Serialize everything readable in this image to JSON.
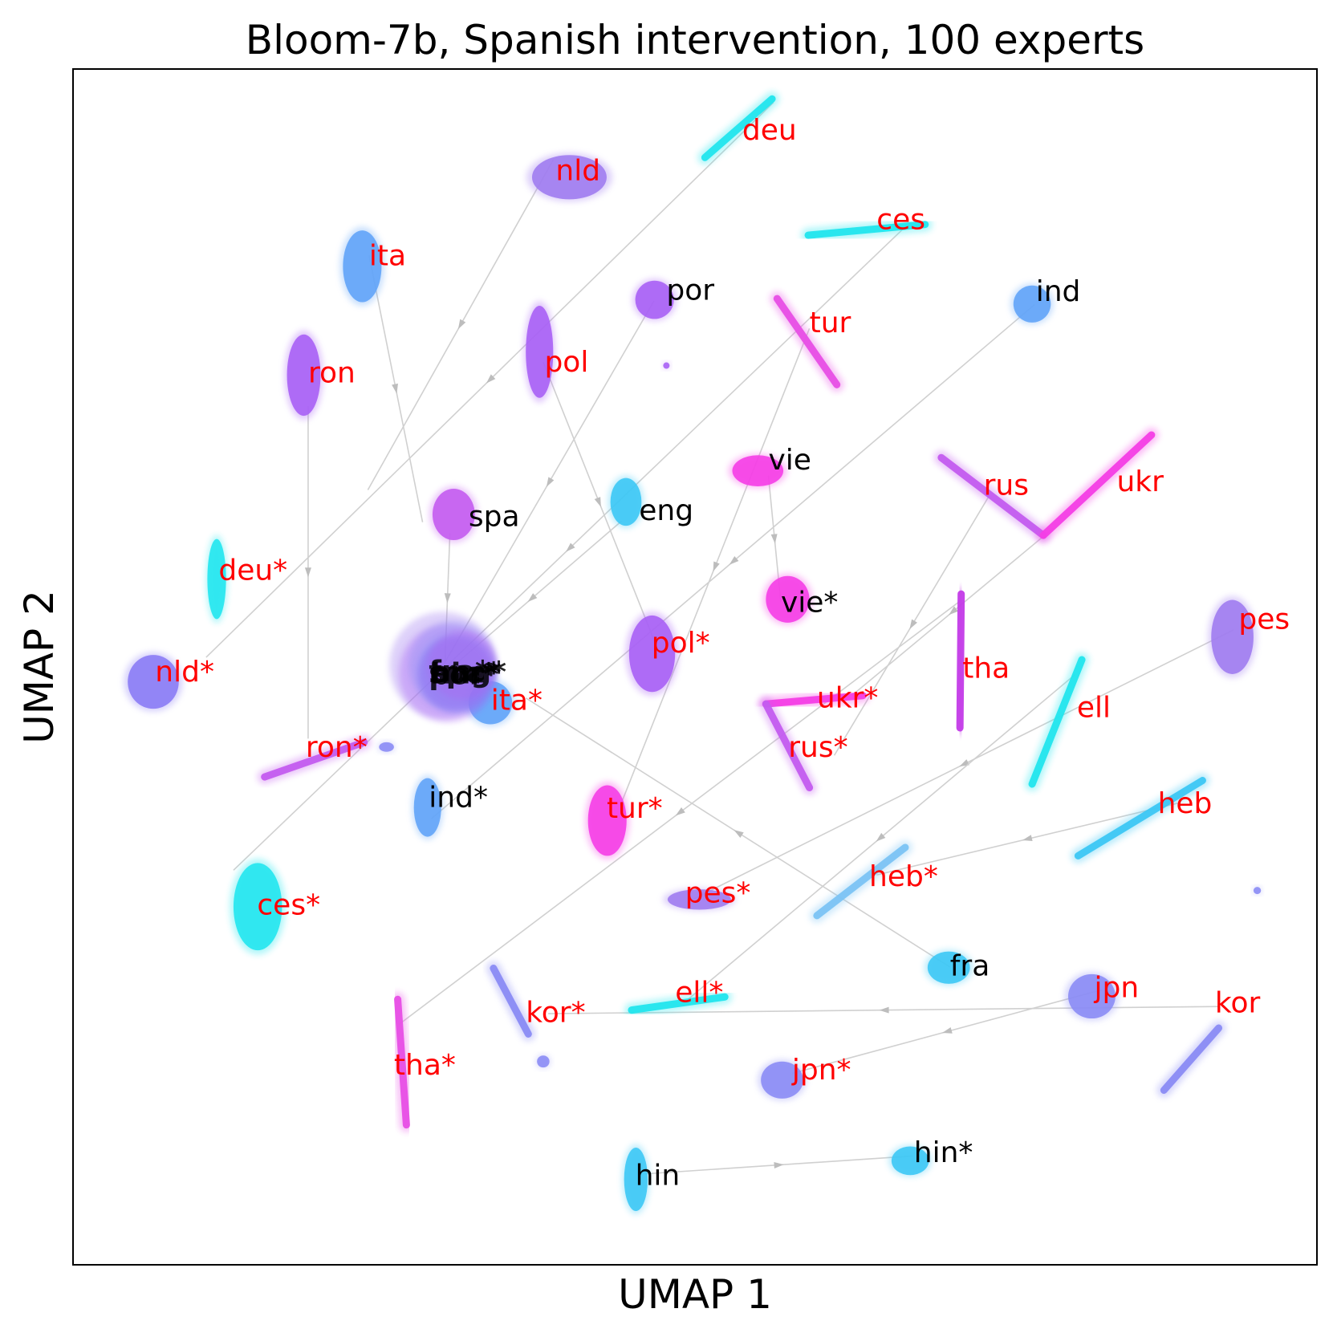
{
  "chart_data": {
    "type": "scatter",
    "title": "Bloom-7b, Spanish intervention, 100 experts",
    "xlabel": "UMAP 1",
    "ylabel": "UMAP 2",
    "xlim": [
      0,
      100
    ],
    "ylim": [
      0,
      100
    ],
    "grid": false,
    "legend": "none",
    "colors": {
      "highlight_label": "#ff0000",
      "default_label": "#000000",
      "arrow": "#d0d0d0"
    },
    "clusters": [
      {
        "label": "deu",
        "color": "#22e6ee",
        "shape": "line",
        "x": [
          50.8,
          56.2
        ],
        "y": [
          92.6,
          97.5
        ],
        "lx": 53.8,
        "ly": 94.9,
        "highlight": true
      },
      {
        "label": "nld",
        "color": "#a07cf0",
        "shape": "blob",
        "x": [
          36.9,
          42.9
        ],
        "y": [
          89.1,
          92.8
        ],
        "lx": 38.8,
        "ly": 91.5,
        "highlight": true
      },
      {
        "label": "ces",
        "color": "#22e6ee",
        "shape": "line",
        "x": [
          59.1,
          68.5
        ],
        "y": [
          86.1,
          87.0
        ],
        "lx": 64.6,
        "ly": 87.4,
        "highlight": true
      },
      {
        "label": "ita",
        "color": "#62a4f8",
        "shape": "blob",
        "x": [
          21.7,
          24.8
        ],
        "y": [
          80.5,
          86.5
        ],
        "lx": 23.8,
        "ly": 84.4,
        "highlight": true
      },
      {
        "label": "por",
        "color": "#a860f5",
        "shape": "blob",
        "x": [
          45.2,
          48.3
        ],
        "y": [
          79.1,
          82.3
        ],
        "lx": 47.7,
        "ly": 81.5,
        "highlight": false
      },
      {
        "label": "ind",
        "color": "#62a4f8",
        "shape": "blob",
        "x": [
          75.6,
          78.6
        ],
        "y": [
          78.8,
          81.9
        ],
        "lx": 77.4,
        "ly": 81.4,
        "highlight": false
      },
      {
        "label": "tur",
        "color": "#e84fe6",
        "shape": "line",
        "x": [
          56.6,
          61.4
        ],
        "y": [
          73.6,
          80.8
        ],
        "lx": 59.2,
        "ly": 78.8,
        "highlight": true
      },
      {
        "label": "pol",
        "color": "#a860f5",
        "shape": "blob",
        "x": [
          36.4,
          38.6
        ],
        "y": [
          72.5,
          80.2
        ],
        "lx": 37.9,
        "ly": 75.5,
        "highlight": true
      },
      {
        "label": "ron",
        "color": "#a860f5",
        "shape": "blob",
        "x": [
          17.2,
          19.9
        ],
        "y": [
          71.0,
          77.8
        ],
        "lx": 18.9,
        "ly": 74.6,
        "highlight": true
      },
      {
        "label": "vie",
        "color": "#f53ee6",
        "shape": "blob",
        "x": [
          53.0,
          57.1
        ],
        "y": [
          65.1,
          67.7
        ],
        "lx": 55.9,
        "ly": 67.3,
        "highlight": false
      },
      {
        "label": "rus",
        "color": "#c45cf0",
        "shape": "line",
        "x": [
          69.8,
          78.0
        ],
        "y": [
          61.0,
          67.5
        ],
        "lx": 73.2,
        "ly": 65.2,
        "highlight": true
      },
      {
        "label": "ukr",
        "color": "#f53ee6",
        "shape": "line",
        "x": [
          78.0,
          86.7
        ],
        "y": [
          61.0,
          69.4
        ],
        "lx": 83.9,
        "ly": 65.5,
        "highlight": true
      },
      {
        "label": "eng",
        "color": "#3dc8f5",
        "shape": "blob",
        "x": [
          43.2,
          45.7
        ],
        "y": [
          61.8,
          65.8
        ],
        "lx": 45.5,
        "ly": 63.1,
        "highlight": false
      },
      {
        "label": "spa",
        "color": "#c45cf0",
        "shape": "blob",
        "x": [
          28.9,
          32.3
        ],
        "y": [
          60.6,
          64.9
        ],
        "lx": 31.8,
        "ly": 62.6,
        "highlight": false
      },
      {
        "label": "deu*",
        "color": "#22e6ee",
        "shape": "blob",
        "x": [
          10.8,
          12.3
        ],
        "y": [
          54.0,
          60.7
        ],
        "lx": 11.7,
        "ly": 58.1,
        "highlight": true
      },
      {
        "label": "vie*",
        "color": "#f53ee6",
        "shape": "blob",
        "x": [
          55.7,
          59.2
        ],
        "y": [
          53.7,
          57.6
        ],
        "lx": 56.9,
        "ly": 55.4,
        "highlight": false
      },
      {
        "label": "pes",
        "color": "#a07cf0",
        "shape": "blob",
        "x": [
          91.5,
          94.9
        ],
        "y": [
          49.4,
          55.6
        ],
        "lx": 93.7,
        "ly": 54.0,
        "highlight": true
      },
      {
        "label": "pol*",
        "color": "#a860f5",
        "shape": "blob",
        "x": [
          44.7,
          48.4
        ],
        "y": [
          47.9,
          54.3
        ],
        "lx": 46.5,
        "ly": 52.0,
        "highlight": true
      },
      {
        "label": "tha",
        "color": "#c43ce8",
        "shape": "line",
        "x": [
          71.3,
          71.4
        ],
        "y": [
          44.9,
          56.1
        ],
        "lx": 71.5,
        "ly": 49.9,
        "highlight": true
      },
      {
        "label": "ell",
        "color": "#22e6ee",
        "shape": "line",
        "x": [
          77.1,
          81.1
        ],
        "y": [
          40.2,
          50.6
        ],
        "lx": 80.7,
        "ly": 46.6,
        "highlight": true
      },
      {
        "label": "nld*",
        "color": "#8b7cf5",
        "shape": "blob",
        "x": [
          4.4,
          8.5
        ],
        "y": [
          46.5,
          51.0
        ],
        "lx": 6.6,
        "ly": 49.6,
        "highlight": true
      },
      {
        "label": "ita*",
        "color": "#62a4f8",
        "shape": "blob",
        "x": [
          31.8,
          35.3
        ],
        "y": [
          45.2,
          48.8
        ],
        "lx": 33.6,
        "ly": 47.2,
        "highlight": true
      },
      {
        "label": "ukr*",
        "color": "#f53ee6",
        "shape": "line",
        "x": [
          55.7,
          63.5
        ],
        "y": [
          46.9,
          47.6
        ],
        "lx": 59.8,
        "ly": 47.4,
        "highlight": true
      },
      {
        "label": "rus*",
        "color": "#c45cf0",
        "shape": "line",
        "x": [
          55.7,
          59.2
        ],
        "y": [
          39.9,
          46.9
        ],
        "lx": 57.5,
        "ly": 43.3,
        "highlight": true
      },
      {
        "label": "ron*",
        "color": "#c45cf0",
        "shape": "line",
        "x": [
          15.4,
          23.4
        ],
        "y": [
          40.8,
          43.7
        ],
        "lx": 18.7,
        "ly": 43.3,
        "highlight": true
      },
      {
        "label": "ind*",
        "color": "#62a4f8",
        "shape": "blob",
        "x": [
          27.4,
          29.6
        ],
        "y": [
          35.8,
          40.7
        ],
        "lx": 28.6,
        "ly": 39.1,
        "highlight": false
      },
      {
        "label": "tur*",
        "color": "#f53ee6",
        "shape": "blob",
        "x": [
          41.4,
          44.5
        ],
        "y": [
          34.2,
          40.1
        ],
        "lx": 42.9,
        "ly": 38.2,
        "highlight": true
      },
      {
        "label": "heb",
        "color": "#3dc8f5",
        "shape": "line",
        "x": [
          80.8,
          90.8
        ],
        "y": [
          34.2,
          40.5
        ],
        "lx": 87.2,
        "ly": 38.6,
        "highlight": true
      },
      {
        "label": "heb*",
        "color": "#7cc4f5",
        "shape": "line",
        "x": [
          59.8,
          66.9
        ],
        "y": [
          29.2,
          34.9
        ],
        "lx": 64.0,
        "ly": 32.5,
        "highlight": true
      },
      {
        "label": "pes*",
        "color": "#a07cf0",
        "shape": "blob",
        "x": [
          47.8,
          52.9
        ],
        "y": [
          29.7,
          31.4
        ],
        "lx": 49.2,
        "ly": 31.1,
        "highlight": true
      },
      {
        "label": "ces*",
        "color": "#22e6ee",
        "shape": "blob",
        "x": [
          12.9,
          16.8
        ],
        "y": [
          26.3,
          33.6
        ],
        "lx": 14.8,
        "ly": 30.1,
        "highlight": true
      },
      {
        "label": "fra",
        "color": "#3dc8f5",
        "shape": "blob",
        "x": [
          68.7,
          72.1
        ],
        "y": [
          23.5,
          26.2
        ],
        "lx": 70.5,
        "ly": 25.0,
        "highlight": false
      },
      {
        "label": "jpn",
        "color": "#8b8cf5",
        "shape": "blob",
        "x": [
          80.0,
          83.8
        ],
        "y": [
          20.6,
          24.3
        ],
        "lx": 82.1,
        "ly": 23.2,
        "highlight": true
      },
      {
        "label": "kor",
        "color": "#8b8cf5",
        "shape": "line",
        "x": [
          87.7,
          92.1
        ],
        "y": [
          14.6,
          19.8
        ],
        "lx": 91.8,
        "ly": 21.9,
        "highlight": true
      },
      {
        "label": "ell*",
        "color": "#22e6ee",
        "shape": "line",
        "x": [
          44.9,
          52.4
        ],
        "y": [
          21.3,
          22.4
        ],
        "lx": 48.4,
        "ly": 22.8,
        "highlight": true
      },
      {
        "label": "kor*",
        "color": "#8b8cf5",
        "shape": "line",
        "x": [
          33.8,
          36.6
        ],
        "y": [
          19.3,
          24.8
        ],
        "lx": 36.4,
        "ly": 21.1,
        "highlight": true
      },
      {
        "label": "tha*",
        "color": "#e84fe6",
        "shape": "line",
        "x": [
          26.1,
          26.8
        ],
        "y": [
          11.7,
          22.2
        ],
        "lx": 25.8,
        "ly": 16.7,
        "highlight": true
      },
      {
        "label": "jpn*",
        "color": "#8b8cf5",
        "shape": "blob",
        "x": [
          55.3,
          58.7
        ],
        "y": [
          13.9,
          17.0
        ],
        "lx": 57.8,
        "ly": 16.3,
        "highlight": true
      },
      {
        "label": "hin*",
        "color": "#3dc8f5",
        "shape": "blob",
        "x": [
          65.8,
          68.8
        ],
        "y": [
          7.5,
          9.9
        ],
        "lx": 67.6,
        "ly": 9.4,
        "highlight": false
      },
      {
        "label": "hin",
        "color": "#3dc8f5",
        "shape": "blob",
        "x": [
          44.3,
          46.2
        ],
        "y": [
          4.5,
          9.8
        ],
        "lx": 45.2,
        "ly": 7.5,
        "highlight": false
      },
      {
        "label": "",
        "color": "#8b8cf5",
        "shape": "blob",
        "x": [
          94.9,
          95.5
        ],
        "y": [
          31.0,
          31.6
        ],
        "lx": 0,
        "ly": 0,
        "highlight": false
      },
      {
        "label": "",
        "color": "#8b8cf5",
        "shape": "blob",
        "x": [
          37.3,
          38.3
        ],
        "y": [
          16.5,
          17.5
        ],
        "lx": 0,
        "ly": 0,
        "highlight": false
      },
      {
        "label": "",
        "color": "#a860f5",
        "shape": "blob",
        "x": [
          47.5,
          47.9
        ],
        "y": [
          75.0,
          75.4
        ],
        "lx": 0,
        "ly": 0,
        "highlight": false
      },
      {
        "label": "",
        "color": "#8b8cf5",
        "shape": "blob",
        "x": [
          24.6,
          25.8
        ],
        "y": [
          42.9,
          43.7
        ],
        "lx": 0,
        "ly": 0,
        "highlight": false
      }
    ],
    "center_cluster": {
      "x": 30.5,
      "y": 49.8,
      "r": 4.3,
      "colors": [
        "#a07cf0",
        "#a860f5",
        "#8b8cf5",
        "#62a4f8",
        "#c45cf0"
      ],
      "labels": [
        "fra*",
        "eng*",
        "spa*",
        "hin*",
        "por*"
      ],
      "lx": 28.6,
      "ly": 49.5
    },
    "arrows": [
      {
        "from": [
          38.6,
          92.4
        ],
        "to": [
          23.7,
          64.8
        ]
      },
      {
        "from": [
          56.3,
          97.2
        ],
        "to": [
          10.7,
          50.8
        ]
      },
      {
        "from": [
          66.9,
          86.8
        ],
        "to": [
          12.9,
          33.0
        ]
      },
      {
        "from": [
          23.8,
          84.4
        ],
        "to": [
          28.1,
          62.1
        ]
      },
      {
        "from": [
          18.9,
          71.8
        ],
        "to": [
          18.9,
          44.0
        ]
      },
      {
        "from": [
          46.7,
          80.6
        ],
        "to": [
          29.8,
          50.2
        ]
      },
      {
        "from": [
          59.2,
          78.3
        ],
        "to": [
          44.0,
          38.4
        ]
      },
      {
        "from": [
          37.8,
          75.5
        ],
        "to": [
          46.8,
          52.0
        ]
      },
      {
        "from": [
          77.3,
          80.3
        ],
        "to": [
          28.8,
          37.3
        ]
      },
      {
        "from": [
          55.9,
          66.0
        ],
        "to": [
          56.9,
          55.4
        ]
      },
      {
        "from": [
          44.1,
          62.2
        ],
        "to": [
          29.6,
          49.2
        ]
      },
      {
        "from": [
          30.3,
          61.2
        ],
        "to": [
          29.9,
          50.3
        ]
      },
      {
        "from": [
          73.7,
          64.4
        ],
        "to": [
          61.2,
          42.6
        ]
      },
      {
        "from": [
          78.8,
          61.6
        ],
        "to": [
          62.6,
          47.6
        ]
      },
      {
        "from": [
          71.3,
          55.5
        ],
        "to": [
          26.2,
          20.1
        ]
      },
      {
        "from": [
          93.3,
          53.1
        ],
        "to": [
          49.9,
          30.6
        ]
      },
      {
        "from": [
          80.6,
          49.4
        ],
        "to": [
          49.1,
          21.9
        ]
      },
      {
        "from": [
          88.8,
          38.6
        ],
        "to": [
          64.6,
          32.6
        ]
      },
      {
        "from": [
          70.5,
          24.9
        ],
        "to": [
          36.4,
          47.4
        ]
      },
      {
        "from": [
          92.2,
          21.6
        ],
        "to": [
          38.2,
          21.0
        ]
      },
      {
        "from": [
          82.7,
          23.0
        ],
        "to": [
          57.8,
          16.0
        ]
      },
      {
        "from": [
          46.0,
          7.6
        ],
        "to": [
          67.5,
          9.1
        ]
      }
    ]
  }
}
